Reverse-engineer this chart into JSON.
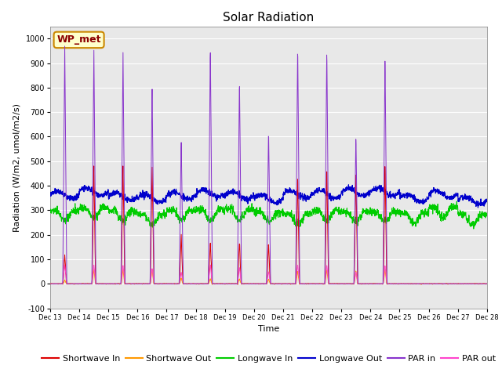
{
  "title": "Solar Radiation",
  "xlabel": "Time",
  "ylabel": "Radiation (W/m2, umol/m2/s)",
  "ylim": [
    -100,
    1050
  ],
  "yticks": [
    -100,
    0,
    100,
    200,
    300,
    400,
    500,
    600,
    700,
    800,
    900,
    1000
  ],
  "n_days": 15,
  "xtick_labels": [
    "Dec 13",
    "Dec 14",
    "Dec 15",
    "Dec 16",
    "Dec 17",
    "Dec 18",
    "Dec 19",
    "Dec 20",
    "Dec 21",
    "Dec 22",
    "Dec 23",
    "Dec 24",
    "Dec 25",
    "Dec 26",
    "Dec 27",
    "Dec 28"
  ],
  "legend_entries": [
    "Shortwave In",
    "Shortwave Out",
    "Longwave In",
    "Longwave Out",
    "PAR in",
    "PAR out"
  ],
  "line_colors": [
    "#dd0000",
    "#ff9900",
    "#00cc00",
    "#0000cc",
    "#8833cc",
    "#ff44cc"
  ],
  "wp_met_label": "WP_met",
  "bg_color": "#e8e8e8",
  "title_fontsize": 11,
  "axis_label_fontsize": 8,
  "tick_fontsize": 7,
  "legend_fontsize": 8,
  "annotation_fontsize": 9,
  "grid_color": "white",
  "par_in_peaks": [
    970,
    960,
    960,
    810,
    595,
    980,
    840,
    630,
    980,
    970,
    610,
    930,
    0,
    0,
    0
  ],
  "sw_in_peaks": [
    120,
    490,
    490,
    490,
    200,
    175,
    175,
    160,
    440,
    490,
    455,
    490,
    0,
    0,
    0
  ],
  "par_out_max": 80,
  "sw_out_ratio": 0.12,
  "lw_in_base": 305,
  "lw_out_base": 358
}
